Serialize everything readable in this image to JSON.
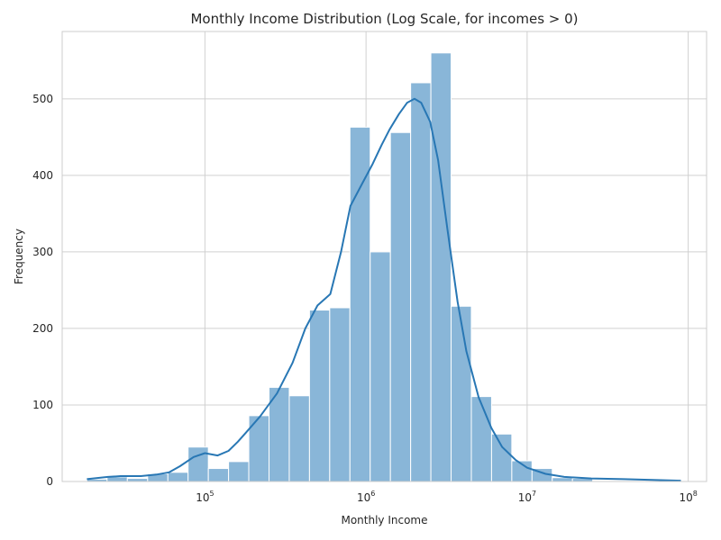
{
  "chart_data": {
    "type": "bar",
    "title": "Monthly Income Distribution (Log Scale, for incomes > 0)",
    "xlabel": "Monthly Income",
    "ylabel": "Frequency",
    "x_scale": "log",
    "xlim": [
      13000,
      130000000
    ],
    "ylim": [
      0,
      588
    ],
    "grid": true,
    "x_ticks": [
      {
        "base": "10",
        "exp": "5",
        "value": 100000
      },
      {
        "base": "10",
        "exp": "6",
        "value": 1000000
      },
      {
        "base": "10",
        "exp": "7",
        "value": 10000000
      },
      {
        "base": "10",
        "exp": "8",
        "value": 100000000
      }
    ],
    "y_ticks": [
      0,
      100,
      200,
      300,
      400,
      500
    ],
    "bins": [
      {
        "x0": 18500,
        "x1": 24700,
        "count": 3
      },
      {
        "x0": 24700,
        "x1": 33000,
        "count": 6
      },
      {
        "x0": 33000,
        "x1": 44100,
        "count": 4
      },
      {
        "x0": 44100,
        "x1": 58900,
        "count": 10
      },
      {
        "x0": 58900,
        "x1": 78600,
        "count": 12
      },
      {
        "x0": 78600,
        "x1": 105000,
        "count": 45
      },
      {
        "x0": 105000,
        "x1": 140200,
        "count": 17
      },
      {
        "x0": 140200,
        "x1": 187200,
        "count": 26
      },
      {
        "x0": 187200,
        "x1": 250000,
        "count": 86
      },
      {
        "x0": 250000,
        "x1": 333800,
        "count": 123
      },
      {
        "x0": 333800,
        "x1": 445700,
        "count": 112
      },
      {
        "x0": 445700,
        "x1": 595100,
        "count": 224
      },
      {
        "x0": 595100,
        "x1": 794700,
        "count": 227
      },
      {
        "x0": 794700,
        "x1": 1061200,
        "count": 463
      },
      {
        "x0": 1061200,
        "x1": 1417000,
        "count": 300
      },
      {
        "x0": 1417000,
        "x1": 1892100,
        "count": 456
      },
      {
        "x0": 1892100,
        "x1": 2526600,
        "count": 521
      },
      {
        "x0": 2526600,
        "x1": 3373700,
        "count": 560
      },
      {
        "x0": 3373700,
        "x1": 4505000,
        "count": 229
      },
      {
        "x0": 4505000,
        "x1": 6015600,
        "count": 111
      },
      {
        "x0": 6015600,
        "x1": 8032800,
        "count": 62
      },
      {
        "x0": 8032800,
        "x1": 10726400,
        "count": 27
      },
      {
        "x0": 10726400,
        "x1": 14323200,
        "count": 17
      },
      {
        "x0": 14323200,
        "x1": 19126100,
        "count": 5
      },
      {
        "x0": 19126100,
        "x1": 25539700,
        "count": 4
      },
      {
        "x0": 25539700,
        "x1": 34103800,
        "count": 1
      },
      {
        "x0": 34103800,
        "x1": 45539600,
        "count": 1
      },
      {
        "x0": 45539600,
        "x1": 60810300,
        "count": 1
      },
      {
        "x0": 60810300,
        "x1": 81201500,
        "count": 1
      }
    ],
    "kde": {
      "x": [
        18500,
        25000,
        30000,
        40000,
        50000,
        60000,
        70000,
        85000,
        100000,
        120000,
        140000,
        160000,
        180000,
        220000,
        280000,
        350000,
        420000,
        500000,
        600000,
        700000,
        800000,
        950000,
        1100000,
        1250000,
        1400000,
        1600000,
        1800000,
        2000000,
        2200000,
        2500000,
        2800000,
        3200000,
        3700000,
        4200000,
        5000000,
        6000000,
        7000000,
        8500000,
        10000000,
        13000000,
        17000000,
        25000000,
        40000000,
        60000000,
        90000000
      ],
      "y": [
        3,
        6,
        7,
        7,
        9,
        12,
        20,
        32,
        37,
        34,
        40,
        52,
        64,
        85,
        115,
        155,
        200,
        230,
        245,
        300,
        360,
        390,
        415,
        440,
        460,
        480,
        495,
        500,
        495,
        470,
        420,
        330,
        235,
        170,
        110,
        70,
        45,
        28,
        18,
        10,
        6,
        4,
        3,
        2,
        1
      ]
    },
    "colors": {
      "bar_fill": "#89b6d8",
      "bar_edge": "#ffffff",
      "kde_line": "#2877b4",
      "grid": "#d0d0d0",
      "spine": "#cccccc"
    }
  }
}
